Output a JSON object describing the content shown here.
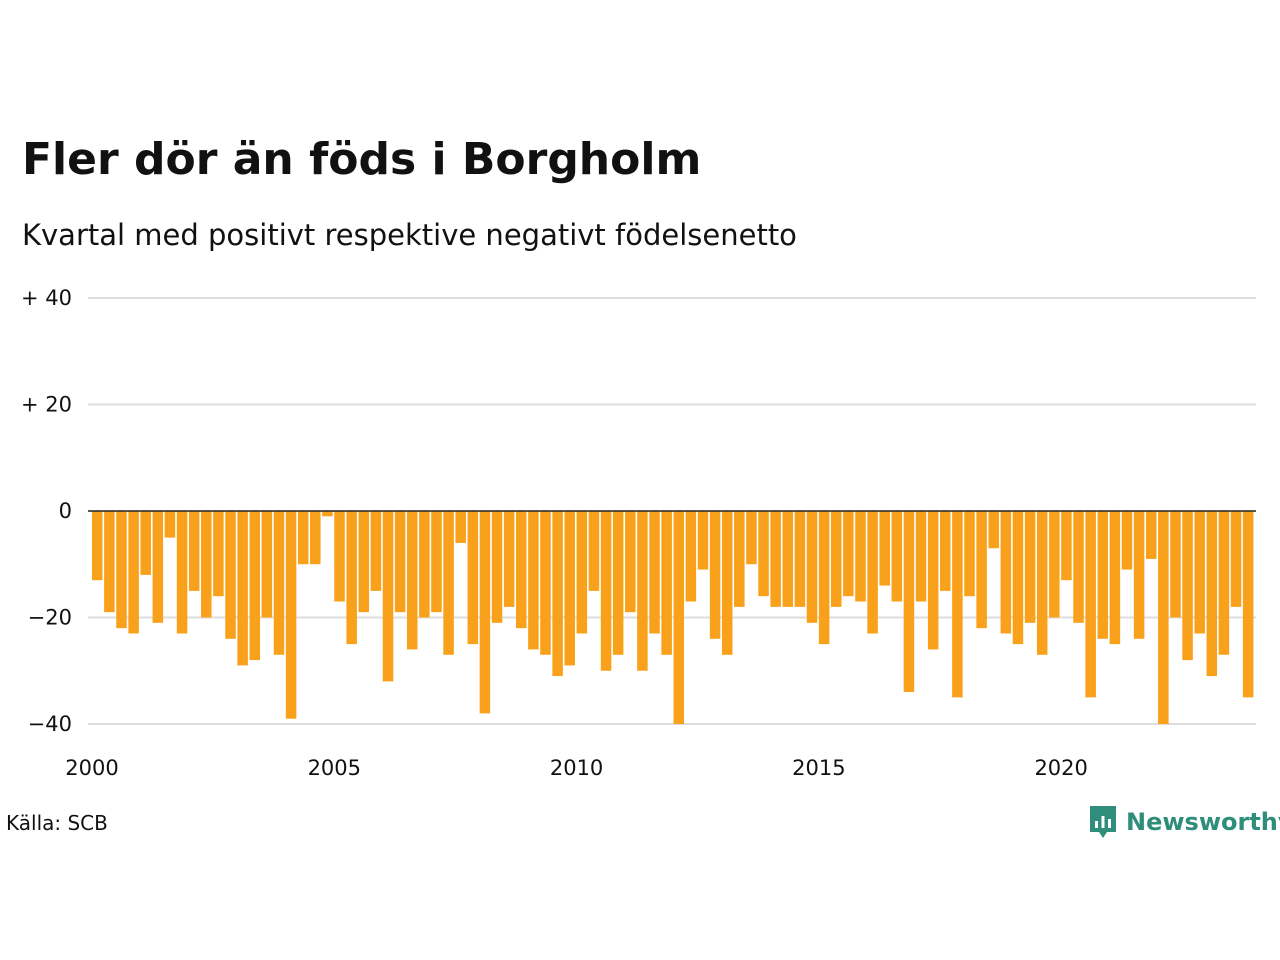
{
  "title": "Fler dör än föds i Borgholm",
  "subtitle": "Kvartal med positivt respektive negativt födelsenetto",
  "source": "Källa: SCB",
  "brand": "Newsworthy",
  "colors": {
    "bar": "#f9a11b",
    "grid": "#dddddd",
    "zero": "#222222",
    "brand": "#2f8d7c"
  },
  "chart_data": {
    "type": "bar",
    "title": "Fler dör än föds i Borgholm",
    "subtitle": "Kvartal med positivt respektive negativt födelsenetto",
    "xlabel": "",
    "ylabel": "",
    "ylim": [
      -40,
      40
    ],
    "yticks": [
      {
        "value": 40,
        "label": "+ 40"
      },
      {
        "value": 20,
        "label": "+ 20"
      },
      {
        "value": 0,
        "label": "0"
      },
      {
        "value": -20,
        "label": "−20"
      },
      {
        "value": -40,
        "label": "−40"
      }
    ],
    "xticks": [
      {
        "year": 2000,
        "label": "2000"
      },
      {
        "year": 2005,
        "label": "2005"
      },
      {
        "year": 2010,
        "label": "2010"
      },
      {
        "year": 2015,
        "label": "2015"
      },
      {
        "year": 2020,
        "label": "2020"
      }
    ],
    "start": {
      "year": 2000,
      "quarter": 1
    },
    "grid": true,
    "legend": "none",
    "values": [
      -13,
      -19,
      -22,
      -23,
      -12,
      -21,
      -5,
      -23,
      -15,
      -20,
      -16,
      -24,
      -29,
      -28,
      -20,
      -27,
      -39,
      -10,
      -10,
      -1,
      -17,
      -25,
      -19,
      -15,
      -32,
      -19,
      -26,
      -20,
      -19,
      -27,
      -6,
      -25,
      -38,
      -21,
      -18,
      -22,
      -26,
      -27,
      -31,
      -29,
      -23,
      -15,
      -30,
      -27,
      -19,
      -30,
      -23,
      -27,
      -40,
      -17,
      -11,
      -24,
      -27,
      -18,
      -10,
      -16,
      -18,
      -18,
      -18,
      -21,
      -25,
      -18,
      -16,
      -17,
      -23,
      -14,
      -17,
      -34,
      -17,
      -26,
      -15,
      -35,
      -16,
      -22,
      -7,
      -23,
      -25,
      -21,
      -27,
      -20,
      -13,
      -21,
      -35,
      -24,
      -25,
      -11,
      -24,
      -9,
      -40,
      -20,
      -28,
      -23,
      -31,
      -27,
      -18,
      -35
    ]
  }
}
